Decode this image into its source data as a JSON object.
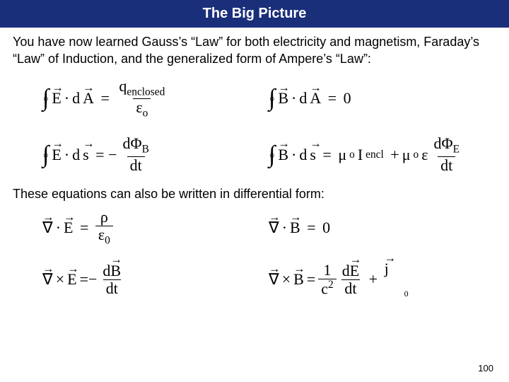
{
  "header": {
    "title": "The Big Picture",
    "background_color": "#1a2f7a",
    "text_color": "#ffffff"
  },
  "intro_text": "You have now learned Gauss’s “Law” for both electricity and magnetism, Faraday’s “Law” of Induction, and the generalized form of Ampere’s “Law”:",
  "integral_equations": {
    "gauss_e": {
      "lhs_field": "E",
      "lhs_diff": "A",
      "rhs_num": "q",
      "rhs_num_sub": "enclosed",
      "rhs_den": "ε",
      "rhs_den_sub": "o"
    },
    "gauss_b": {
      "lhs_field": "B",
      "lhs_diff": "A",
      "rhs": "0"
    },
    "faraday": {
      "lhs_field": "E",
      "lhs_diff": "s",
      "rhs_num": "dΦ",
      "rhs_num_sub": "B",
      "rhs_den": "dt"
    },
    "ampere": {
      "lhs_field": "B",
      "lhs_diff": "s",
      "mu": "μ",
      "mu_sub": "o",
      "I": "I",
      "I_sub": "encl",
      "eps": "ε",
      "frac_num": "dΦ",
      "frac_num_sub": "E",
      "frac_den": "dt"
    }
  },
  "mid_text": "These equations can also be written in differential form:",
  "differential_equations": {
    "div_e": {
      "op": "∇",
      "dot": "·",
      "field": "E",
      "rhs_num": "ρ",
      "rhs_den": "ε",
      "rhs_den_sub": "0"
    },
    "div_b": {
      "op": "∇",
      "dot": "·",
      "field": "B",
      "rhs": "0"
    },
    "curl_e": {
      "op": "∇",
      "cross": "×",
      "field": "E",
      "rhs_num_d": "d",
      "rhs_num_field": "B",
      "rhs_den": "dt"
    },
    "curl_b": {
      "op": "∇",
      "cross": "×",
      "field": "B",
      "coef_num": "1",
      "coef_den_base": "c",
      "coef_den_exp": "2",
      "rhs_num_d": "d",
      "rhs_num_field": "E",
      "rhs_den": "dt",
      "plus_field": "j",
      "plus_sub": "0"
    }
  },
  "page_number": "100"
}
